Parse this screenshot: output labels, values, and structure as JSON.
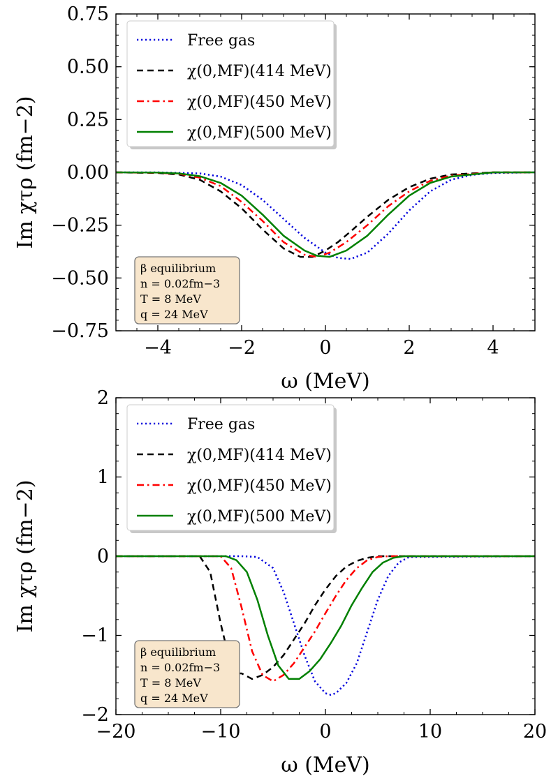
{
  "chart_data": [
    {
      "type": "line",
      "xlabel": "ω (MeV)",
      "ylabel": "Im χτρ (fm−2)",
      "xlim": [
        -5,
        5
      ],
      "ylim": [
        -0.75,
        0.75
      ],
      "xticks": [
        -4,
        -2,
        0,
        2,
        4
      ],
      "xtick_labels": [
        "−4",
        "−2",
        "0",
        "2",
        "4"
      ],
      "yticks": [
        -0.75,
        -0.5,
        -0.25,
        0.0,
        0.25,
        0.5,
        0.75
      ],
      "ytick_labels": [
        "−0.75",
        "−0.50",
        "−0.25",
        "0.00",
        "0.25",
        "0.50",
        "0.75"
      ],
      "legend_position": "top-left",
      "annotation_position": "bottom-left",
      "annotation": [
        "β equilibrium",
        "n = 0.02fm−3",
        "T = 8 MeV",
        "q = 24 MeV"
      ],
      "series": [
        {
          "name": "Free gas",
          "color": "#0000dd",
          "style": "dotted",
          "x": [
            -5,
            -4,
            -3,
            -2.5,
            -2,
            -1.5,
            -1,
            -0.5,
            0,
            0.3,
            0.6,
            1,
            1.5,
            2,
            2.5,
            3,
            3.5,
            4,
            5
          ],
          "y": [
            0,
            0,
            -0.005,
            -0.02,
            -0.06,
            -0.13,
            -0.22,
            -0.31,
            -0.38,
            -0.405,
            -0.41,
            -0.38,
            -0.29,
            -0.18,
            -0.09,
            -0.035,
            -0.012,
            -0.003,
            0
          ]
        },
        {
          "name": "χ(0,MF)(414 MeV)",
          "color": "#000000",
          "style": "dashed",
          "x": [
            -5,
            -4,
            -3.5,
            -3,
            -2.5,
            -2,
            -1.5,
            -1,
            -0.6,
            -0.3,
            0,
            0.3,
            0.6,
            1,
            1.5,
            2,
            2.5,
            3,
            4,
            5
          ],
          "y": [
            0,
            -0.003,
            -0.01,
            -0.035,
            -0.09,
            -0.17,
            -0.27,
            -0.36,
            -0.4,
            -0.4,
            -0.37,
            -0.33,
            -0.28,
            -0.21,
            -0.13,
            -0.07,
            -0.03,
            -0.01,
            0,
            0
          ]
        },
        {
          "name": "χ(0,MF)(450 MeV)",
          "color": "#ff0000",
          "style": "dashdot",
          "x": [
            -5,
            -4,
            -3.5,
            -3,
            -2.5,
            -2,
            -1.5,
            -1,
            -0.5,
            -0.2,
            0.1,
            0.5,
            1,
            1.5,
            2,
            2.5,
            3,
            4,
            5
          ],
          "y": [
            0,
            -0.002,
            -0.007,
            -0.025,
            -0.065,
            -0.14,
            -0.23,
            -0.33,
            -0.39,
            -0.4,
            -0.38,
            -0.33,
            -0.25,
            -0.16,
            -0.09,
            -0.04,
            -0.015,
            0,
            0
          ]
        },
        {
          "name": "χ(0,MF)(500 MeV)",
          "color": "#008000",
          "style": "solid",
          "x": [
            -5,
            -4,
            -3.5,
            -3,
            -2.5,
            -2,
            -1.5,
            -1,
            -0.5,
            -0.2,
            0.1,
            0.5,
            1,
            1.5,
            2,
            2.5,
            3,
            4,
            5
          ],
          "y": [
            0,
            -0.001,
            -0.005,
            -0.018,
            -0.05,
            -0.11,
            -0.2,
            -0.3,
            -0.37,
            -0.395,
            -0.4,
            -0.37,
            -0.3,
            -0.2,
            -0.11,
            -0.05,
            -0.02,
            0,
            0
          ]
        }
      ]
    },
    {
      "type": "line",
      "xlabel": "ω (MeV)",
      "ylabel": "Im χτρ (fm−2)",
      "xlim": [
        -20,
        20
      ],
      "ylim": [
        -2,
        2
      ],
      "xticks": [
        -20,
        -10,
        0,
        10,
        20
      ],
      "xtick_labels": [
        "−20",
        "−10",
        "0",
        "10",
        "20"
      ],
      "yticks": [
        -2,
        -1,
        0,
        1,
        2
      ],
      "ytick_labels": [
        "−2",
        "−1",
        "0",
        "1",
        "2"
      ],
      "legend_position": "top-left",
      "annotation_position": "bottom-left",
      "annotation": [
        "β equilibrium",
        "n = 0.02fm−3",
        "T = 8 MeV",
        "q = 24 MeV"
      ],
      "series": [
        {
          "name": "Free gas",
          "color": "#0000dd",
          "style": "dotted",
          "x": [
            -20,
            -8,
            -6.5,
            -5,
            -4,
            -3,
            -2,
            -1,
            0,
            0.5,
            1,
            2,
            3,
            4,
            5,
            6,
            7,
            8,
            20
          ],
          "y": [
            0,
            0,
            -0.01,
            -0.15,
            -0.45,
            -0.85,
            -1.25,
            -1.58,
            -1.73,
            -1.75,
            -1.73,
            -1.6,
            -1.35,
            -0.95,
            -0.55,
            -0.25,
            -0.08,
            -0.01,
            0
          ]
        },
        {
          "name": "χ(0,MF)(414 MeV)",
          "color": "#000000",
          "style": "dashed",
          "x": [
            -20,
            -12,
            -11,
            -10,
            -9,
            -8.5,
            -8,
            -7,
            -6,
            -5,
            -4,
            -3,
            -2,
            -1,
            0,
            1,
            2,
            3,
            4,
            5,
            6,
            20
          ],
          "y": [
            0,
            0,
            -0.2,
            -0.85,
            -1.4,
            -1.48,
            -1.48,
            -1.55,
            -1.5,
            -1.4,
            -1.25,
            -1.05,
            -0.85,
            -0.62,
            -0.42,
            -0.25,
            -0.13,
            -0.06,
            -0.02,
            0,
            0,
            0
          ]
        },
        {
          "name": "χ(0,MF)(450 MeV)",
          "color": "#ff0000",
          "style": "dashdot",
          "x": [
            -20,
            -10,
            -9,
            -8,
            -7,
            -6,
            -5,
            -4,
            -3,
            -2,
            -1,
            0,
            1,
            2,
            3,
            4,
            5,
            6,
            7,
            20
          ],
          "y": [
            0,
            0,
            -0.15,
            -0.65,
            -1.2,
            -1.5,
            -1.58,
            -1.5,
            -1.35,
            -1.15,
            -0.95,
            -0.72,
            -0.5,
            -0.3,
            -0.15,
            -0.05,
            -0.01,
            0,
            0,
            0
          ]
        },
        {
          "name": "χ(0,MF)(500 MeV)",
          "color": "#008000",
          "style": "solid",
          "x": [
            -20,
            -9.5,
            -8.5,
            -7.5,
            -6.5,
            -5.5,
            -4.5,
            -3.5,
            -2.5,
            -1.5,
            -0.5,
            0.5,
            1.5,
            2.5,
            3.5,
            4.5,
            5.5,
            6.5,
            7.5,
            8.5,
            20
          ],
          "y": [
            0,
            0,
            -0.05,
            -0.2,
            -0.55,
            -1.0,
            -1.38,
            -1.55,
            -1.55,
            -1.45,
            -1.3,
            -1.1,
            -0.88,
            -0.62,
            -0.4,
            -0.2,
            -0.08,
            -0.02,
            0,
            0,
            0
          ]
        }
      ]
    }
  ]
}
